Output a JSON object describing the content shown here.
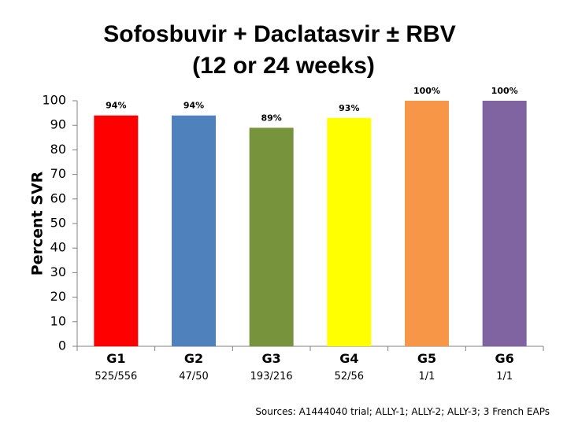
{
  "title_line1": "Sofosbuvir + Daclatasvir ± RBV",
  "title_line2": "(12 or 24 weeks)",
  "sources": "Sources: A1444040 trial; ALLY-1; ALLY-2; ALLY-3; 3 French EAPs",
  "chart_data": {
    "type": "bar",
    "categories": [
      "G1",
      "G2",
      "G3",
      "G4",
      "G5",
      "G6"
    ],
    "values": [
      94,
      94,
      89,
      93,
      100,
      100
    ],
    "data_labels": [
      "94%",
      "94%",
      "89%",
      "93%",
      "100%",
      "100%"
    ],
    "sample_sizes": [
      "525/556",
      "47/50",
      "193/216",
      "52/56",
      "1/1",
      "1/1"
    ],
    "colors": [
      "#ff0000",
      "#4f81bd",
      "#77933c",
      "#ffff00",
      "#f79646",
      "#8064a2"
    ],
    "ylabel": "Percent SVR",
    "ylim": [
      0,
      100
    ],
    "yticks": [
      0,
      10,
      20,
      30,
      40,
      50,
      60,
      70,
      80,
      90,
      100
    ],
    "grid": false,
    "legend": "none"
  }
}
